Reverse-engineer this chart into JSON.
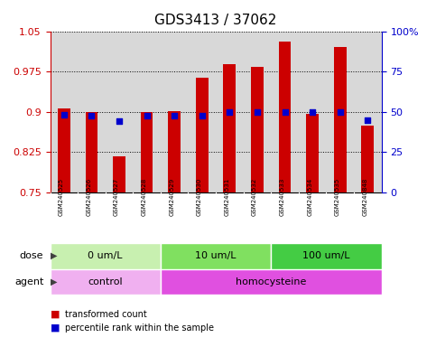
{
  "title": "GDS3413 / 37062",
  "samples": [
    "GSM240525",
    "GSM240526",
    "GSM240527",
    "GSM240528",
    "GSM240529",
    "GSM240530",
    "GSM240531",
    "GSM240532",
    "GSM240533",
    "GSM240534",
    "GSM240535",
    "GSM240848"
  ],
  "transformed_count": [
    0.907,
    0.9,
    0.818,
    0.9,
    0.902,
    0.963,
    0.988,
    0.984,
    1.03,
    0.897,
    1.02,
    0.874
  ],
  "percentile_rank": [
    0.895,
    0.893,
    0.883,
    0.893,
    0.893,
    0.893,
    0.9,
    0.9,
    0.9,
    0.9,
    0.9,
    0.885
  ],
  "ylim_left": [
    0.75,
    1.05
  ],
  "ylim_right": [
    0,
    100
  ],
  "yticks_left": [
    0.75,
    0.825,
    0.9,
    0.975,
    1.05
  ],
  "yticks_right": [
    0,
    25,
    50,
    75,
    100
  ],
  "bar_color": "#cc0000",
  "dot_color": "#0000cc",
  "dose_groups": [
    {
      "label": "0 um/L",
      "start": 0,
      "end": 3,
      "color": "#c8f0b0"
    },
    {
      "label": "10 um/L",
      "start": 4,
      "end": 7,
      "color": "#80e060"
    },
    {
      "label": "100 um/L",
      "start": 8,
      "end": 11,
      "color": "#44cc44"
    }
  ],
  "agent_groups": [
    {
      "label": "control",
      "start": 0,
      "end": 3,
      "color": "#f0b0f0"
    },
    {
      "label": "homocysteine",
      "start": 4,
      "end": 11,
      "color": "#e050e0"
    }
  ],
  "dose_label": "dose",
  "agent_label": "agent",
  "legend_bar_label": "transformed count",
  "legend_dot_label": "percentile rank within the sample",
  "background_color": "#ffffff",
  "plot_bg_color": "#d8d8d8",
  "sample_bg_color": "#c8c8c8",
  "grid_color": "#000000",
  "title_color": "#000000",
  "left_tick_color": "#cc0000",
  "right_tick_color": "#0000cc",
  "title_fontsize": 11,
  "tick_fontsize": 8,
  "label_fontsize": 8,
  "sample_fontsize": 5,
  "legend_fontsize": 7
}
